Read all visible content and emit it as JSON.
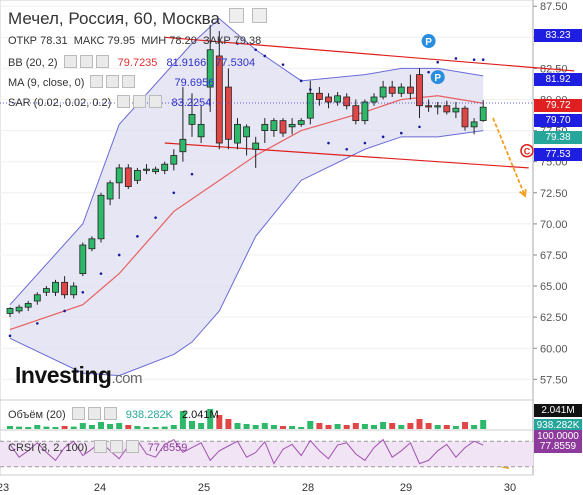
{
  "header": {
    "title": "Мечел, Россия, 60, Москва",
    "open_label": "ОТКР",
    "open": "78.31",
    "high_label": "МАКС",
    "high": "79.95",
    "low_label": "МИН",
    "low": "78.20",
    "close_label": "ЗАКР",
    "close": "79.38"
  },
  "indicators": [
    {
      "id": "bb",
      "label": "BB (20, 2)",
      "values": [
        "79.7235",
        "81.9166",
        "77.5304"
      ],
      "colors": [
        "#e03030",
        "#3030c8",
        "#3030c8"
      ]
    },
    {
      "id": "ma",
      "label": "MA (9, close, 0)",
      "values": [
        "79.6956"
      ],
      "colors": [
        "#3030c8"
      ]
    },
    {
      "id": "sar",
      "label": "SAR (0.02, 0.02, 0.2)",
      "values": [
        "83.2254"
      ],
      "colors": [
        "#3030c8"
      ]
    }
  ],
  "volume_panel": {
    "label": "Объём (20)",
    "values": [
      "938.282K",
      "2.041M"
    ],
    "colors": [
      "#26a69a",
      "#111111"
    ]
  },
  "crsi_panel": {
    "label": "CRSI (3, 2, 100)",
    "value": "77.8559",
    "color": "#8e3a9c"
  },
  "logo": {
    "name": "Investing",
    "suffix": ".com"
  },
  "markers": {
    "pivot": "P",
    "circle": "C"
  },
  "price_tags": [
    {
      "text": "83.23",
      "price": 83.23,
      "bg": "#1e1ee0"
    },
    {
      "text": "81.92",
      "price": 81.92,
      "bg": "#1e1ee0"
    },
    {
      "text": "79.72",
      "price": 79.72,
      "bg": "#e02020"
    },
    {
      "text": "79.70",
      "price": 79.7,
      "bg": "#1e1ee0"
    },
    {
      "text": "79.38",
      "price": 79.38,
      "bg": "#26a69a"
    },
    {
      "text": "77.53",
      "price": 77.53,
      "bg": "#1e1ee0"
    }
  ],
  "volume_tags": [
    {
      "text": "2.041M",
      "bg": "#111111"
    },
    {
      "text": "938.282K",
      "bg": "#26a69a"
    }
  ],
  "crsi_tags": [
    {
      "text": "100.0000",
      "bg": "#8e3a9c"
    },
    {
      "text": "77.8559",
      "bg": "#8e3a9c"
    }
  ],
  "chart_data": {
    "type": "candlestick",
    "ylim": [
      56.0,
      88.0
    ],
    "y_ticks": [
      87.5,
      85.0,
      82.5,
      80.0,
      77.5,
      75.0,
      72.5,
      70.0,
      67.5,
      65.0,
      62.5,
      60.0,
      57.5
    ],
    "x_ticks": [
      "23",
      "24",
      "25",
      "28",
      "29",
      "30"
    ],
    "candles": [
      [
        62.8,
        63.3,
        62.5,
        63.2
      ],
      [
        63.0,
        63.5,
        62.8,
        63.3
      ],
      [
        63.3,
        63.8,
        63.0,
        63.6
      ],
      [
        63.8,
        64.5,
        63.5,
        64.3
      ],
      [
        64.5,
        65.0,
        64.2,
        64.8
      ],
      [
        64.5,
        65.5,
        64.2,
        65.3
      ],
      [
        65.3,
        65.8,
        64.0,
        64.3
      ],
      [
        64.3,
        65.3,
        64.0,
        65.0
      ],
      [
        66.0,
        68.5,
        65.8,
        68.3
      ],
      [
        68.0,
        69.0,
        67.8,
        68.8
      ],
      [
        68.8,
        72.5,
        68.5,
        72.3
      ],
      [
        72.0,
        73.5,
        71.5,
        73.3
      ],
      [
        73.3,
        74.8,
        72.0,
        74.5
      ],
      [
        74.5,
        74.8,
        72.8,
        73.0
      ],
      [
        73.5,
        74.5,
        73.2,
        74.3
      ],
      [
        74.3,
        74.8,
        74.0,
        74.4
      ],
      [
        74.2,
        74.6,
        74.0,
        74.4
      ],
      [
        74.3,
        75.0,
        74.0,
        74.8
      ],
      [
        74.8,
        76.0,
        74.3,
        75.5
      ],
      [
        75.8,
        81.0,
        75.0,
        76.8
      ],
      [
        78.0,
        80.5,
        77.0,
        78.8
      ],
      [
        77.0,
        79.5,
        76.5,
        78.0
      ],
      [
        81.0,
        86.0,
        79.0,
        84.0
      ],
      [
        83.5,
        85.5,
        76.0,
        76.5
      ],
      [
        81.0,
        82.5,
        76.0,
        76.8
      ],
      [
        76.5,
        78.5,
        76.0,
        78.0
      ],
      [
        77.0,
        78.0,
        75.5,
        77.8
      ],
      [
        76.0,
        77.0,
        74.5,
        76.5
      ],
      [
        77.5,
        78.5,
        76.5,
        78.0
      ],
      [
        77.5,
        78.5,
        77.0,
        78.3
      ],
      [
        78.3,
        78.5,
        77.0,
        77.3
      ],
      [
        77.8,
        78.5,
        77.2,
        78.0
      ],
      [
        78.0,
        78.5,
        77.8,
        78.3
      ],
      [
        78.5,
        81.5,
        78.0,
        80.5
      ],
      [
        80.5,
        81.0,
        79.5,
        80.0
      ],
      [
        80.2,
        80.5,
        79.3,
        79.8
      ],
      [
        79.8,
        80.6,
        79.5,
        80.3
      ],
      [
        80.2,
        80.5,
        79.2,
        79.5
      ],
      [
        79.5,
        80.0,
        78.0,
        78.3
      ],
      [
        78.3,
        80.0,
        78.0,
        79.8
      ],
      [
        79.8,
        80.5,
        79.5,
        80.2
      ],
      [
        80.2,
        81.5,
        80.0,
        81.0
      ],
      [
        81.0,
        81.5,
        80.2,
        80.5
      ],
      [
        80.5,
        81.3,
        80.2,
        81.0
      ],
      [
        81.0,
        82.0,
        80.0,
        80.5
      ],
      [
        82.0,
        82.5,
        78.5,
        79.5
      ],
      [
        79.5,
        80.0,
        79.0,
        79.4
      ],
      [
        79.4,
        79.8,
        78.8,
        79.5
      ],
      [
        79.5,
        79.9,
        78.8,
        79.0
      ],
      [
        79.0,
        79.8,
        78.5,
        79.3
      ],
      [
        79.3,
        79.5,
        77.5,
        77.8
      ],
      [
        77.8,
        78.5,
        77.2,
        78.2
      ],
      [
        78.31,
        79.95,
        78.2,
        79.38
      ]
    ],
    "overlays": {
      "bb_upper": [
        63.5,
        null,
        null,
        null,
        null,
        null,
        null,
        null,
        70.0,
        null,
        null,
        null,
        78.0,
        null,
        null,
        null,
        null,
        null,
        null,
        null,
        84.5,
        null,
        null,
        86.5,
        null,
        null,
        null,
        84.0,
        null,
        null,
        null,
        null,
        81.5,
        null,
        null,
        null,
        null,
        null,
        null,
        82.0,
        null,
        null,
        null,
        82.5,
        null,
        null,
        null,
        82.5,
        null,
        null,
        null,
        null,
        81.9
      ],
      "bb_lower": [
        60.8,
        null,
        null,
        null,
        null,
        null,
        null,
        null,
        58.0,
        null,
        null,
        null,
        57.8,
        null,
        null,
        null,
        null,
        null,
        59.5,
        null,
        60.5,
        null,
        null,
        63.0,
        null,
        null,
        null,
        69.0,
        null,
        null,
        null,
        null,
        73.5,
        null,
        null,
        null,
        null,
        null,
        null,
        76.0,
        null,
        null,
        null,
        77.0,
        null,
        null,
        null,
        77.0,
        null,
        null,
        null,
        null,
        77.5
      ],
      "ma": [
        61.5,
        null,
        null,
        null,
        null,
        null,
        null,
        null,
        63.5,
        null,
        null,
        null,
        66.0,
        null,
        null,
        null,
        null,
        null,
        71.0,
        null,
        null,
        null,
        null,
        73.5,
        null,
        null,
        null,
        75.5,
        null,
        null,
        null,
        null,
        77.5,
        null,
        null,
        null,
        null,
        null,
        null,
        79.0,
        null,
        null,
        null,
        80.0,
        null,
        null,
        null,
        80.3,
        null,
        null,
        null,
        null,
        79.7
      ],
      "sar_points": [
        [
          0,
          61.0
        ],
        [
          3,
          62.0
        ],
        [
          6,
          63.0
        ],
        [
          8,
          64.5
        ],
        [
          10,
          66.0
        ],
        [
          12,
          67.5
        ],
        [
          14,
          69.0
        ],
        [
          16,
          70.5
        ],
        [
          18,
          72.5
        ],
        [
          20,
          74.0
        ],
        [
          22,
          81.5
        ],
        [
          23,
          82.0
        ],
        [
          25,
          84.5
        ],
        [
          27,
          84.0
        ],
        [
          28,
          83.5
        ],
        [
          30,
          82.8
        ],
        [
          32,
          81.5
        ],
        [
          33,
          80.8
        ],
        [
          35,
          76.5
        ],
        [
          37,
          76.0
        ],
        [
          39,
          76.5
        ],
        [
          41,
          77.0
        ],
        [
          43,
          77.3
        ],
        [
          45,
          77.8
        ],
        [
          46,
          82.2
        ],
        [
          47,
          83.0
        ],
        [
          49,
          83.3
        ],
        [
          51,
          83.2
        ],
        [
          52,
          83.2
        ]
      ]
    },
    "annotation_lines": [
      {
        "from": [
          17,
          85.0
        ],
        "to": [
          62,
          82.3
        ],
        "color": "#e02020"
      },
      {
        "from": [
          17,
          76.5
        ],
        "to": [
          57,
          74.5
        ],
        "color": "#e02020"
      }
    ],
    "pivot_points": [
      [
        46,
        84.7
      ],
      [
        47,
        81.8
      ]
    ],
    "circle_marker": {
      "price": 75.0
    },
    "volume": [
      0.15,
      0.12,
      0.1,
      0.2,
      0.12,
      0.1,
      0.15,
      0.12,
      0.3,
      0.2,
      0.35,
      0.25,
      0.3,
      0.2,
      0.15,
      0.1,
      0.1,
      0.12,
      0.2,
      0.9,
      0.4,
      0.3,
      1.0,
      0.7,
      0.5,
      0.3,
      0.25,
      0.2,
      0.3,
      0.2,
      0.15,
      0.15,
      0.1,
      0.4,
      0.3,
      0.2,
      0.25,
      0.2,
      0.3,
      0.25,
      0.2,
      0.35,
      0.3,
      0.2,
      0.3,
      0.5,
      0.3,
      0.2,
      0.2,
      0.15,
      0.35,
      0.2,
      0.45
    ],
    "crsi": [
      80,
      40,
      60,
      85,
      55,
      30,
      70,
      90,
      45,
      65,
      88,
      60,
      35,
      75,
      92,
      50,
      40,
      80,
      95,
      55,
      70,
      85,
      30,
      60,
      75,
      90,
      40,
      55,
      88,
      20,
      65,
      80,
      45,
      92,
      60,
      35,
      78,
      85,
      50,
      30,
      70,
      95,
      40,
      60,
      85,
      20,
      30,
      60,
      80,
      40,
      70,
      90,
      77.86
    ]
  }
}
